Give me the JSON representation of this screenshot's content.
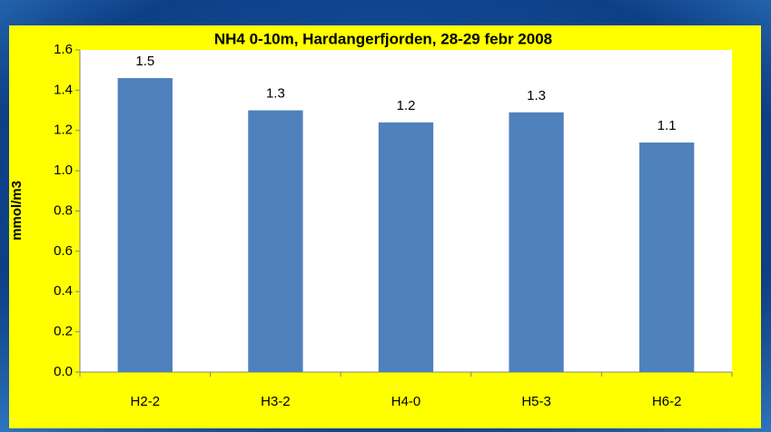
{
  "chart_data": {
    "type": "bar",
    "title": "NH4 0-10m, Hardangerfjorden, 28-29 febr 2008",
    "y_label": "mmol/m3",
    "categories": [
      "H2-2",
      "H3-2",
      "H4-0",
      "H5-3",
      "H6-2"
    ],
    "values": [
      1.46,
      1.3,
      1.24,
      1.29,
      1.14
    ],
    "value_labels": [
      "1.5",
      "1.3",
      "1.2",
      "1.3",
      "1.1"
    ],
    "color": "#4f81bd",
    "ylim": [
      0,
      1.6
    ],
    "yticks": [
      {
        "value": 0,
        "label": "0.0"
      },
      0.2,
      0.4,
      0.6,
      0.8,
      {
        "value": 1,
        "label": "1.0"
      },
      1.2,
      1.4,
      1.6
    ],
    "grid": false
  }
}
